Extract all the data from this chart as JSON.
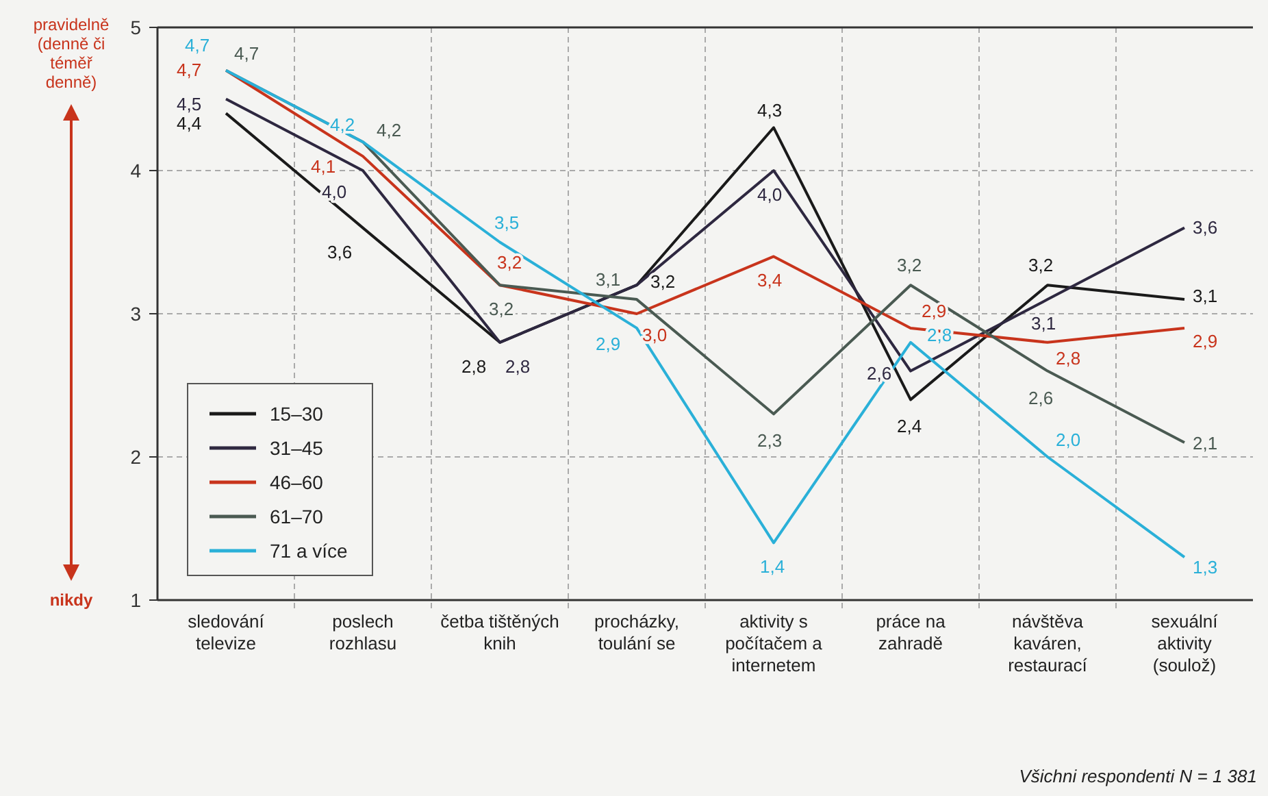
{
  "chart_data": {
    "type": "line",
    "categories": [
      "sledování televize",
      "poslech rozhlasu",
      "četba tištěných knih",
      "procházky, toulání se",
      "aktivity s počítačem a internetem",
      "práce na zahradě",
      "návštěva kaváren, restaurací",
      "sexuální aktivity (soulož)"
    ],
    "ylim": [
      1,
      5
    ],
    "yticks": [
      1,
      2,
      3,
      4,
      5
    ],
    "grid": true,
    "legend": "bottom left",
    "marker": "none",
    "line_style": "solid",
    "series": [
      {
        "name": "15–30",
        "color": "#1a1a1a",
        "values": [
          4.4,
          3.6,
          2.8,
          3.2,
          4.3,
          2.4,
          3.2,
          3.1
        ],
        "value_labels": [
          "4,4",
          "3,6",
          "2,8",
          "3,2",
          "4,3",
          "2,4",
          "3,2",
          "3,1"
        ]
      },
      {
        "name": "31–45",
        "color": "#2e2840",
        "values": [
          4.5,
          4.0,
          2.8,
          3.2,
          4.0,
          2.6,
          3.1,
          3.6
        ],
        "value_labels": [
          "4,5",
          "4,0",
          "2,8",
          null,
          "4,0",
          "2,6",
          "3,1",
          "3,6"
        ]
      },
      {
        "name": "46–60",
        "color": "#c8341c",
        "values": [
          4.7,
          4.1,
          3.2,
          3.0,
          3.4,
          2.9,
          2.8,
          2.9
        ],
        "value_labels": [
          "4,7",
          "4,1",
          "3,2",
          "3,0",
          "3,4",
          "2,9",
          "2,8",
          "2,9"
        ]
      },
      {
        "name": "61–70",
        "color": "#4a5a52",
        "values": [
          4.7,
          4.2,
          3.2,
          3.1,
          2.3,
          3.2,
          2.6,
          2.1
        ],
        "value_labels": [
          "4,7",
          "4,2",
          "3,2",
          "3,1",
          "2,3",
          "3,2",
          "2,6",
          "2,1"
        ]
      },
      {
        "name": "71 a více",
        "color": "#2ab0d8",
        "values": [
          4.7,
          4.2,
          3.5,
          2.9,
          1.4,
          2.8,
          2.0,
          1.3
        ],
        "value_labels": [
          "4,7",
          "4,2",
          "3,5",
          "2,9",
          "1,4",
          "2,8",
          "2,0",
          "1,3"
        ]
      }
    ],
    "annotations": [
      "pravidelně (denně či téměř denně)",
      "nikdy",
      "Všichni respondenti N = 1 381"
    ]
  }
}
